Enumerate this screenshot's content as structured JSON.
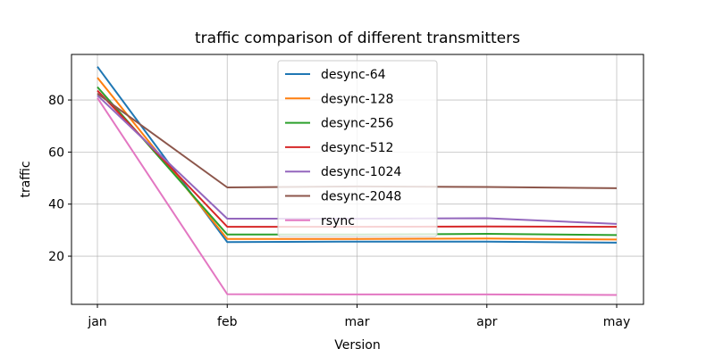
{
  "chart_data": {
    "type": "line",
    "title": "traffic comparison of different transmitters",
    "xlabel": "Version",
    "ylabel": "traffic",
    "categories": [
      "jan",
      "feb",
      "mar",
      "apr",
      "may"
    ],
    "ylim": [
      1.5,
      97.5
    ],
    "yticks": [
      20,
      40,
      60,
      80
    ],
    "grid": true,
    "legend_position": "top-center",
    "series": [
      {
        "name": "desync-64",
        "color": "#1f77b4",
        "values": [
          92.8,
          25.4,
          25.6,
          25.6,
          25.2
        ]
      },
      {
        "name": "desync-128",
        "color": "#ff7f0e",
        "values": [
          88.6,
          26.6,
          26.6,
          26.8,
          26.4
        ]
      },
      {
        "name": "desync-256",
        "color": "#2ca02c",
        "values": [
          85.0,
          28.3,
          28.3,
          28.6,
          28.1
        ]
      },
      {
        "name": "desync-512",
        "color": "#d62728",
        "values": [
          83.6,
          31.3,
          31.3,
          31.4,
          31.3
        ]
      },
      {
        "name": "desync-1024",
        "color": "#9467bd",
        "values": [
          81.8,
          34.4,
          34.4,
          34.6,
          32.4
        ]
      },
      {
        "name": "desync-2048",
        "color": "#8c564b",
        "values": [
          82.5,
          46.4,
          46.8,
          46.6,
          46.1
        ]
      },
      {
        "name": "rsync",
        "color": "#e377c2",
        "values": [
          80.8,
          5.4,
          5.3,
          5.3,
          5.1
        ]
      }
    ]
  }
}
